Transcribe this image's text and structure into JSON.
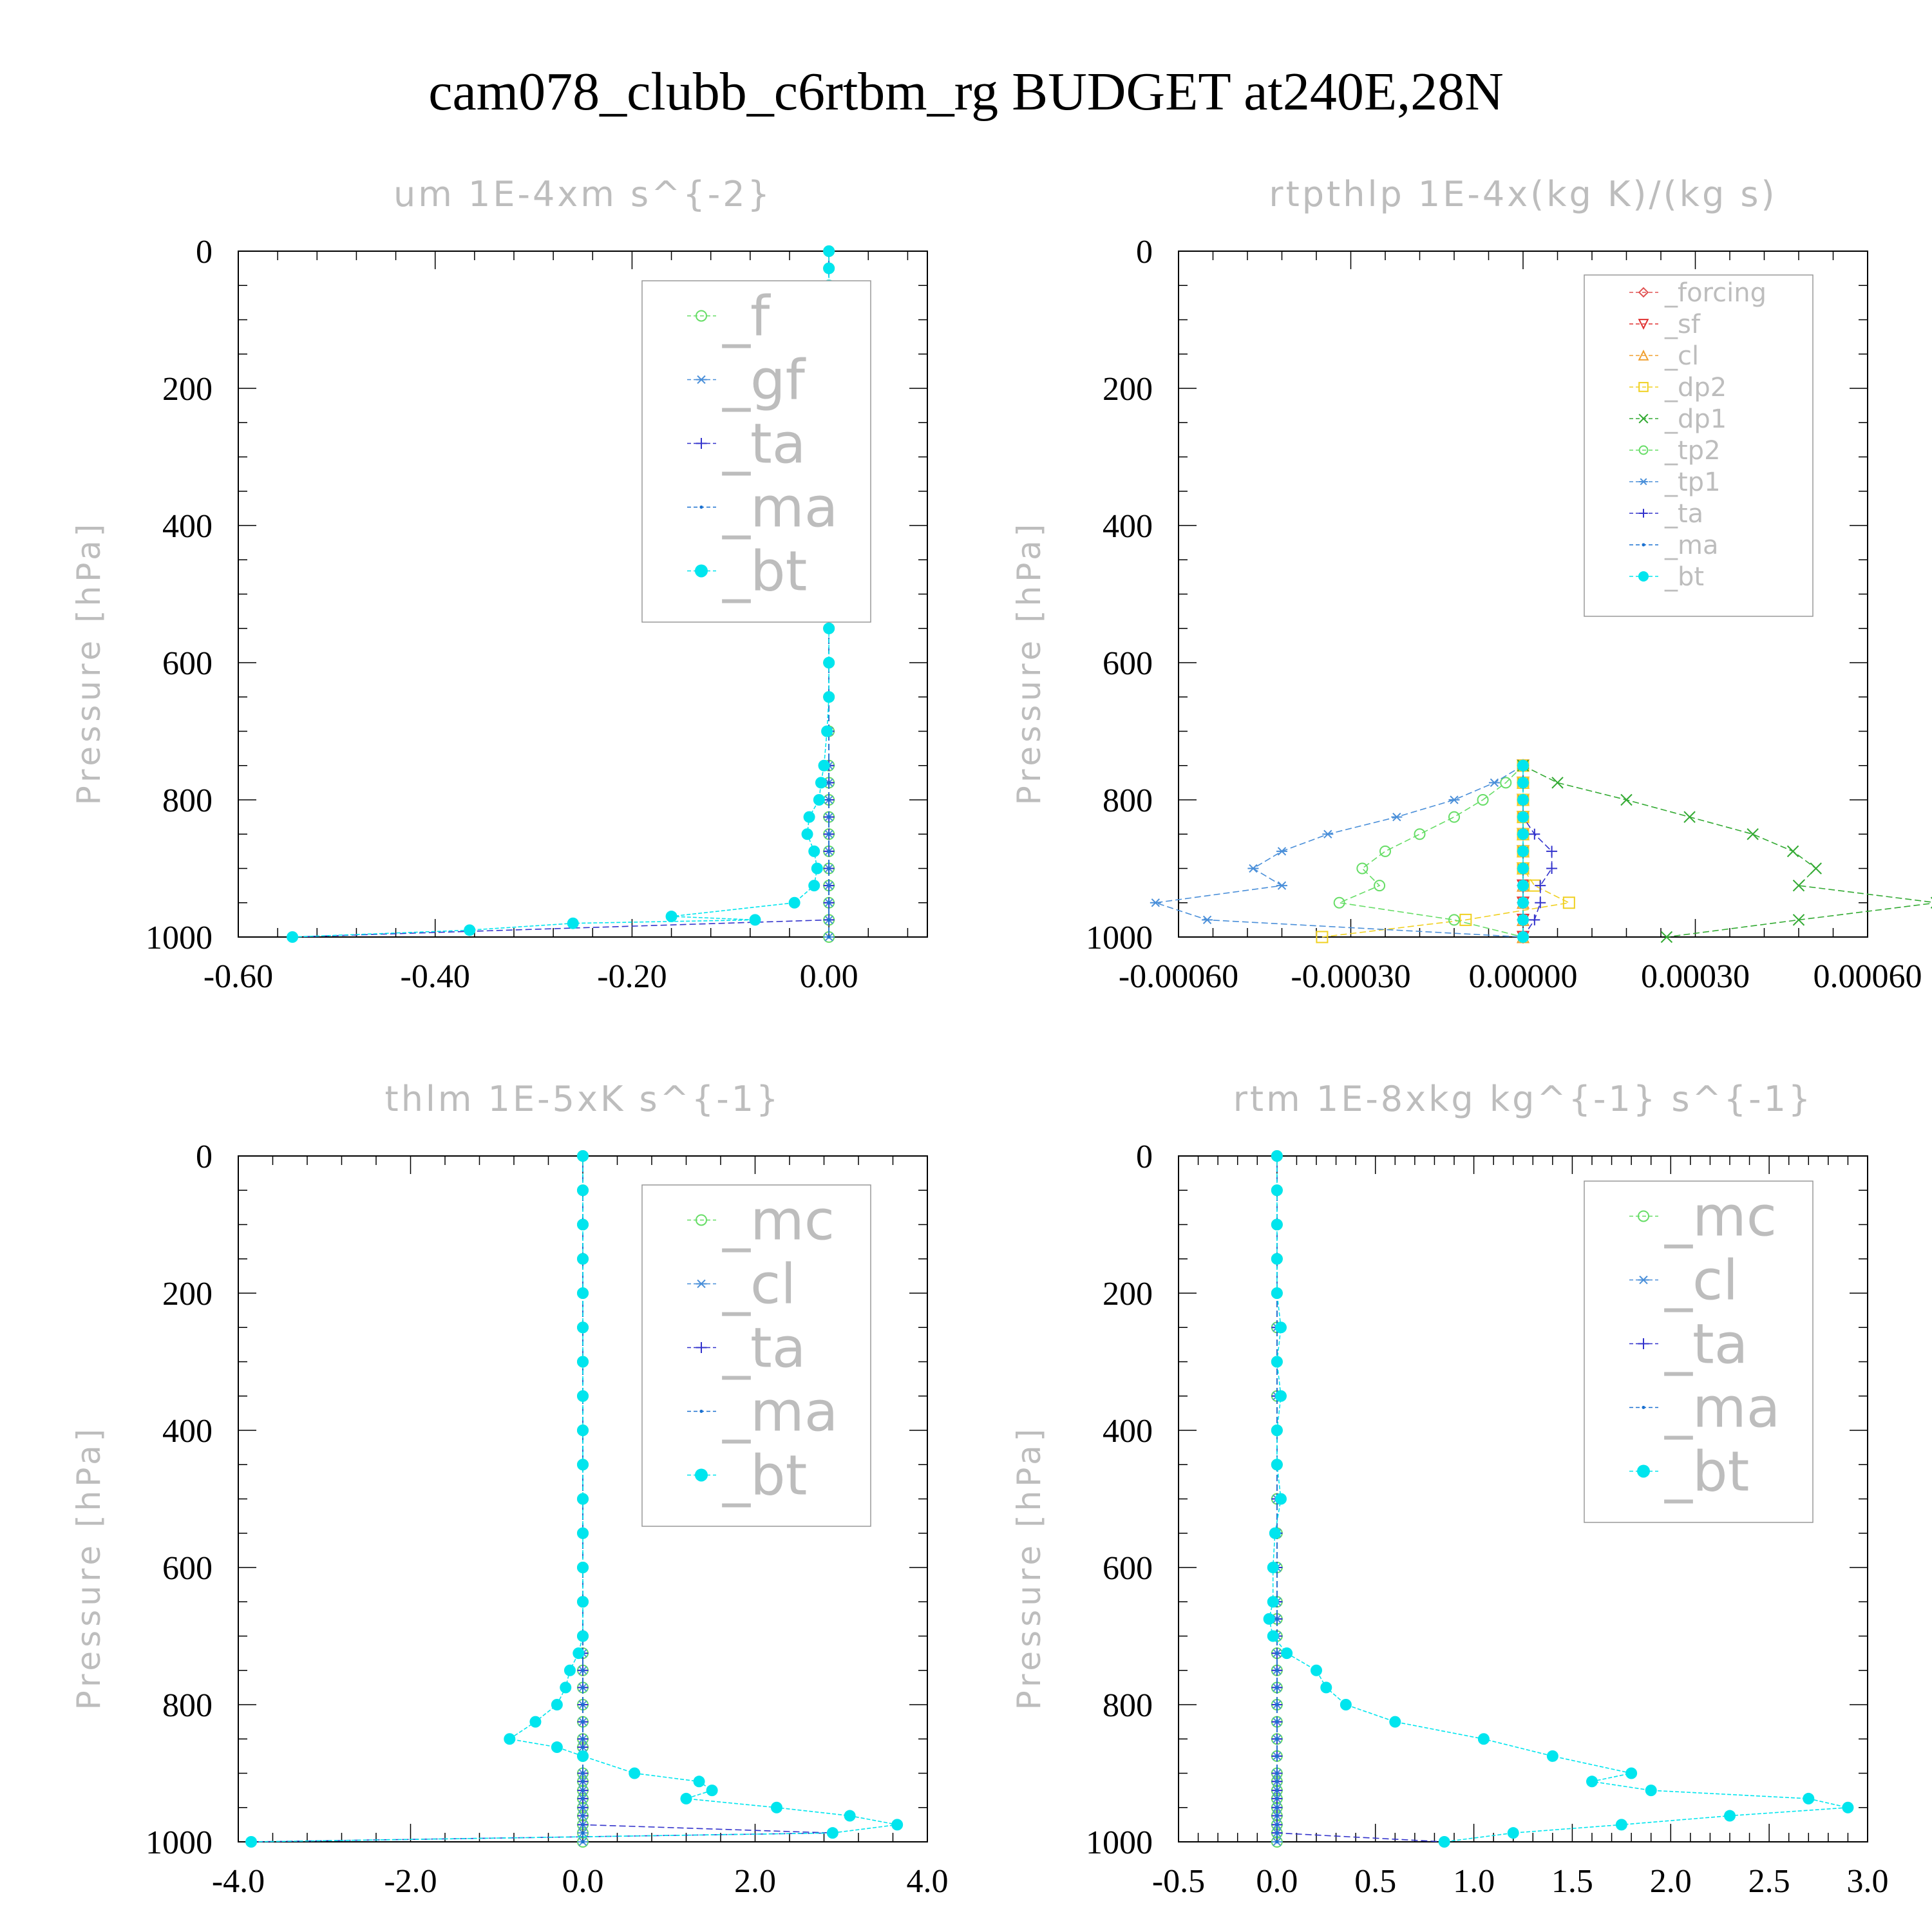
{
  "title": "cam078_clubb_c6rtbm_rg  BUDGET at240E,28N",
  "chart_data": [
    {
      "type": "line",
      "title": "um  1E-4xm s^{-2}",
      "ylabel": "Pressure [hPa]",
      "ylim": [
        0,
        1000
      ],
      "y_inverted": true,
      "yticks": [
        0,
        200,
        400,
        600,
        800,
        1000
      ],
      "ytick_labels": [
        "0",
        "200",
        "400",
        "600",
        "800",
        "1000"
      ],
      "xlim": [
        -0.6,
        0.1
      ],
      "xticks": [
        -0.6,
        -0.4,
        -0.2,
        0.0
      ],
      "xtick_labels": [
        "-0.60",
        "-0.40",
        "-0.20",
        "0.00"
      ],
      "legend_position": "top-right",
      "levels": [
        0,
        25,
        50,
        75,
        100,
        125,
        150,
        175,
        200,
        225,
        250,
        275,
        300,
        325,
        350,
        375,
        400,
        425,
        450,
        475,
        500,
        550,
        600,
        650,
        700,
        750,
        775,
        800,
        825,
        850,
        875,
        900,
        925,
        950,
        975,
        1000
      ],
      "series": [
        {
          "name": "_f",
          "color": "#66dd66",
          "marker": "circle-open",
          "values": [
            0,
            0,
            0,
            0,
            0,
            0,
            0,
            0,
            0,
            0,
            0,
            0,
            0,
            0,
            0,
            0,
            0,
            0,
            0,
            0,
            0,
            0,
            0,
            0,
            0,
            0,
            0,
            0,
            0,
            0,
            0,
            0,
            0,
            0,
            0,
            0
          ]
        },
        {
          "name": "_gf",
          "color": "#4a8fd9",
          "marker": "asterisk",
          "values": [
            0,
            0,
            0,
            0,
            0,
            0,
            0,
            0,
            0,
            0,
            0,
            0,
            0,
            0,
            0,
            0,
            0,
            0,
            0,
            0,
            0,
            0,
            0,
            0,
            0,
            0,
            0,
            0,
            0,
            0,
            0,
            0,
            0,
            0,
            0,
            0
          ]
        },
        {
          "name": "_ta",
          "color": "#3333cc",
          "marker": "plus",
          "values": [
            0,
            0,
            0,
            0,
            0,
            0,
            0,
            0,
            0,
            0,
            0,
            0,
            0,
            0,
            0,
            0,
            0,
            0,
            0,
            0,
            0,
            0,
            0,
            0,
            0,
            0,
            0,
            0,
            0,
            0,
            0,
            0,
            0,
            0,
            0,
            -0.545
          ]
        },
        {
          "name": "_ma",
          "color": "#1a70d0",
          "marker": "dot",
          "values": [
            0,
            0,
            0,
            0,
            0,
            0,
            0,
            0,
            0,
            0,
            0,
            0,
            0,
            0,
            0,
            0,
            0,
            0,
            0,
            0,
            0,
            0,
            0,
            0,
            0,
            0,
            0,
            0,
            0,
            0,
            0,
            0,
            0,
            0,
            0,
            0
          ]
        },
        {
          "name": "_bt",
          "color": "#00e5ee",
          "marker": "filled-circle",
          "values": [
            0,
            0,
            0,
            0,
            0,
            0.001,
            -0.004,
            -0.007,
            -0.01,
            0.002,
            0.006,
            0.002,
            0.001,
            0.0,
            -0.002,
            0.001,
            0.002,
            0.0,
            0.0,
            0.0,
            0.0,
            0.0,
            0.0,
            0.0,
            -0.002,
            -0.005,
            -0.008,
            -0.01,
            -0.02,
            -0.022,
            -0.015,
            -0.012,
            -0.015,
            -0.035,
            -0.075,
            -0.545
          ]
        }
      ],
      "bt_extra_points": [
        [
          -0.16,
          970
        ],
        [
          -0.26,
          980
        ],
        [
          -0.365,
          990
        ]
      ]
    },
    {
      "type": "line",
      "title": "rtpthlp  1E-4x(kg K)/(kg s)",
      "ylabel": "Pressure [hPa]",
      "ylim": [
        0,
        1000
      ],
      "y_inverted": true,
      "yticks": [
        0,
        200,
        400,
        600,
        800,
        1000
      ],
      "ytick_labels": [
        "0",
        "200",
        "400",
        "600",
        "800",
        "1000"
      ],
      "xlim": [
        -0.0006,
        0.0006
      ],
      "xticks": [
        -0.0006,
        -0.0003,
        0.0,
        0.0003,
        0.0006
      ],
      "xtick_labels": [
        "-0.00060",
        "-0.00030",
        "0.00000",
        "0.00030",
        "0.00060"
      ],
      "legend_position": "top-right",
      "levels": [
        750,
        775,
        800,
        825,
        850,
        875,
        900,
        925,
        950,
        975,
        1000
      ],
      "series": [
        {
          "name": "_forcing",
          "color": "#e05050",
          "marker": "diamond",
          "values": [
            0,
            0,
            0,
            0,
            0,
            0,
            0,
            0,
            0,
            0,
            0
          ]
        },
        {
          "name": "_sf",
          "color": "#e03030",
          "marker": "triangle-down",
          "values": [
            0,
            0,
            0,
            0,
            0,
            0,
            0,
            0,
            0,
            0,
            0
          ]
        },
        {
          "name": "_cl",
          "color": "#f0a030",
          "marker": "triangle-up",
          "values": [
            0,
            0,
            0,
            0,
            0,
            0,
            0,
            0,
            0,
            0,
            0
          ]
        },
        {
          "name": "_dp2",
          "color": "#f0d020",
          "marker": "square",
          "values": [
            0,
            0,
            0,
            0,
            0,
            0,
            0,
            2e-05,
            8e-05,
            -0.0001,
            -0.00035
          ]
        },
        {
          "name": "_dp1",
          "color": "#33aa33",
          "marker": "x",
          "values": [
            0,
            6e-05,
            0.00018,
            0.00029,
            0.0004,
            0.00047,
            0.00051,
            0.00048,
            0.00072,
            0.00048,
            0.00025
          ]
        },
        {
          "name": "_tp2",
          "color": "#66dd66",
          "marker": "circle-open",
          "values": [
            0,
            -3e-05,
            -7e-05,
            -0.00012,
            -0.00018,
            -0.00024,
            -0.00028,
            -0.00025,
            -0.00032,
            -0.00012,
            0
          ]
        },
        {
          "name": "_tp1",
          "color": "#4a8fd9",
          "marker": "asterisk",
          "values": [
            0,
            -5e-05,
            -0.00012,
            -0.00022,
            -0.00034,
            -0.00042,
            -0.00047,
            -0.00042,
            -0.00064,
            -0.00055,
            0
          ]
        },
        {
          "name": "_ta",
          "color": "#3333cc",
          "marker": "plus",
          "values": [
            0,
            0,
            0,
            0,
            2e-05,
            5e-05,
            5e-05,
            3e-05,
            3e-05,
            2e-05,
            0
          ]
        },
        {
          "name": "_ma",
          "color": "#1a70d0",
          "marker": "dot",
          "values": [
            0,
            0,
            0,
            0,
            0,
            0,
            0,
            0,
            0,
            0,
            0
          ]
        },
        {
          "name": "_bt",
          "color": "#00e5ee",
          "marker": "filled-circle",
          "values": [
            0,
            0,
            0,
            0,
            0,
            0,
            0,
            0,
            0,
            0,
            0
          ]
        }
      ]
    },
    {
      "type": "line",
      "title": "thlm  1E-5xK s^{-1}",
      "ylabel": "Pressure [hPa]",
      "ylim": [
        0,
        1000
      ],
      "y_inverted": true,
      "yticks": [
        0,
        200,
        400,
        600,
        800,
        1000
      ],
      "ytick_labels": [
        "0",
        "200",
        "400",
        "600",
        "800",
        "1000"
      ],
      "xlim": [
        -4.0,
        4.0
      ],
      "xticks": [
        -4.0,
        -2.0,
        0.0,
        2.0,
        4.0
      ],
      "xtick_labels": [
        "-4.0",
        "-2.0",
        "0.0",
        "2.0",
        "4.0"
      ],
      "legend_position": "top-right",
      "levels": [
        0,
        50,
        100,
        150,
        200,
        250,
        300,
        350,
        400,
        450,
        500,
        550,
        600,
        650,
        700,
        725,
        750,
        775,
        800,
        825,
        850,
        862,
        875,
        900,
        912,
        925,
        937,
        950,
        962,
        975,
        987,
        1000
      ],
      "series": [
        {
          "name": "_mc",
          "color": "#66dd66",
          "marker": "circle-open",
          "values": [
            0,
            0,
            0,
            0,
            0,
            0,
            0,
            0,
            0,
            0,
            0,
            0,
            0,
            0,
            0,
            0,
            0,
            0,
            0,
            0,
            0,
            0,
            0,
            0,
            0,
            0,
            0,
            0,
            0,
            0,
            0,
            0
          ]
        },
        {
          "name": "_cl",
          "color": "#4a8fd9",
          "marker": "asterisk",
          "values": [
            0,
            0,
            0,
            0,
            0,
            0,
            0,
            0,
            0,
            0,
            0,
            0,
            0,
            0,
            0,
            0,
            0,
            0,
            0,
            0,
            0,
            0,
            0,
            0,
            0,
            0,
            0,
            0,
            0,
            0,
            0,
            0
          ]
        },
        {
          "name": "_ta",
          "color": "#3333cc",
          "marker": "plus",
          "values": [
            0,
            0,
            0,
            0,
            0,
            0,
            0,
            0,
            0,
            0,
            0,
            0,
            0,
            0,
            0,
            0,
            0,
            0,
            0,
            0,
            0,
            0,
            0,
            0,
            0,
            0,
            0,
            0,
            0,
            0,
            2.9,
            -3.85
          ]
        },
        {
          "name": "_ma",
          "color": "#1a70d0",
          "marker": "dot",
          "values": [
            0,
            0,
            0,
            0,
            0,
            0,
            0,
            0,
            0,
            0,
            0,
            0,
            0,
            0,
            0,
            0,
            0,
            0,
            0,
            0,
            0,
            0,
            0,
            0,
            0,
            0,
            0,
            0,
            0,
            0,
            0,
            0
          ]
        },
        {
          "name": "_bt",
          "color": "#00e5ee",
          "marker": "filled-circle",
          "values": [
            0,
            0,
            0,
            0,
            0,
            0,
            0,
            0,
            0,
            0,
            0,
            0,
            0,
            0,
            0,
            -0.05,
            -0.15,
            -0.2,
            -0.3,
            -0.55,
            -0.85,
            -0.3,
            0.0,
            0.6,
            1.35,
            1.5,
            1.2,
            2.25,
            3.1,
            3.65,
            2.9,
            -3.85
          ]
        }
      ]
    },
    {
      "type": "line",
      "title": "rtm  1E-8xkg kg^{-1} s^{-1}",
      "ylabel": "Pressure [hPa]",
      "ylim": [
        0,
        1000
      ],
      "y_inverted": true,
      "yticks": [
        0,
        200,
        400,
        600,
        800,
        1000
      ],
      "ytick_labels": [
        "0",
        "200",
        "400",
        "600",
        "800",
        "1000"
      ],
      "xlim": [
        -0.5,
        3.0
      ],
      "xticks": [
        -0.5,
        0.0,
        0.5,
        1.0,
        1.5,
        2.0,
        2.5,
        3.0
      ],
      "xtick_labels": [
        "-0.5",
        "0.0",
        "0.5",
        "1.0",
        "1.5",
        "2.0",
        "2.5",
        "3.0"
      ],
      "legend_position": "top-right",
      "levels": [
        0,
        50,
        100,
        150,
        200,
        250,
        300,
        350,
        400,
        450,
        500,
        550,
        600,
        650,
        675,
        700,
        725,
        750,
        775,
        800,
        825,
        850,
        875,
        900,
        912,
        925,
        937,
        950,
        962,
        975,
        987,
        1000
      ],
      "series": [
        {
          "name": "_mc",
          "color": "#66dd66",
          "marker": "circle-open",
          "values": [
            0,
            0,
            0,
            0,
            0,
            0,
            0,
            0,
            0,
            0,
            0,
            0,
            0,
            0,
            0,
            0,
            0,
            0,
            0,
            0,
            0,
            0,
            0,
            0,
            0,
            0,
            0,
            0,
            0,
            0,
            0,
            0
          ]
        },
        {
          "name": "_cl",
          "color": "#4a8fd9",
          "marker": "asterisk",
          "values": [
            0,
            0,
            0,
            0,
            0,
            0,
            0,
            0,
            0,
            0,
            0,
            0,
            0,
            0,
            0,
            0,
            0,
            0,
            0,
            0,
            0,
            0,
            0,
            0,
            0,
            0,
            0,
            0,
            0,
            0,
            0,
            0
          ]
        },
        {
          "name": "_ta",
          "color": "#3333cc",
          "marker": "plus",
          "values": [
            0,
            0,
            0,
            0,
            0,
            0,
            0,
            0,
            0,
            0,
            0,
            0,
            0,
            0,
            0,
            0,
            0,
            0,
            0,
            0,
            0,
            0,
            0,
            0,
            0,
            0,
            0,
            0,
            0,
            0,
            0,
            0.85
          ]
        },
        {
          "name": "_ma",
          "color": "#1a70d0",
          "marker": "dot",
          "values": [
            0,
            0,
            0,
            0,
            0,
            0,
            0,
            0,
            0,
            0,
            0,
            0,
            0,
            0,
            0,
            0,
            0,
            0,
            0,
            0,
            0,
            0,
            0,
            0,
            0,
            0,
            0,
            0,
            0,
            0,
            0,
            0
          ]
        },
        {
          "name": "_bt",
          "color": "#00e5ee",
          "marker": "filled-circle",
          "values": [
            0,
            0,
            0,
            0,
            0,
            0.02,
            0.0,
            0.02,
            0.0,
            0.0,
            0.02,
            -0.01,
            -0.02,
            -0.02,
            -0.04,
            -0.02,
            0.05,
            0.2,
            0.25,
            0.35,
            0.6,
            1.05,
            1.4,
            1.8,
            1.6,
            1.9,
            2.7,
            2.9,
            2.3,
            1.75,
            1.2,
            0.85
          ]
        }
      ]
    }
  ]
}
